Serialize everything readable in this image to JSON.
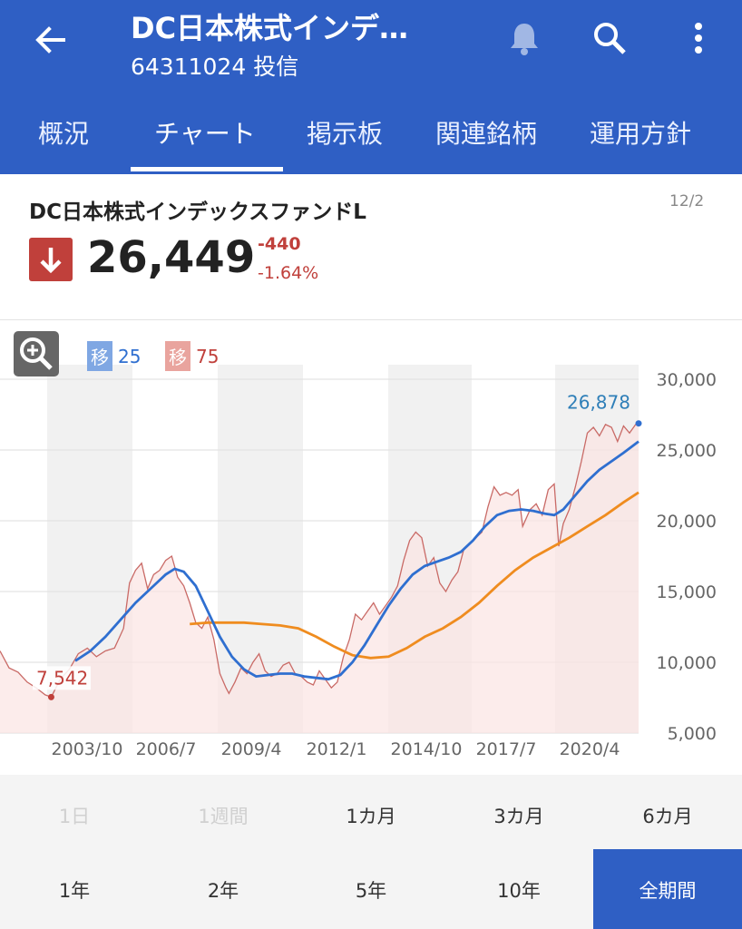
{
  "header": {
    "title": "DC日本株式インデ…",
    "subtitle": "64311024 投信"
  },
  "tabs": [
    {
      "label": "概況"
    },
    {
      "label": "チャート",
      "selected": true
    },
    {
      "label": "掲示板"
    },
    {
      "label": "関連銘柄"
    },
    {
      "label": "運用方針"
    }
  ],
  "quote": {
    "fund_name": "DC日本株式インデックスファンドL",
    "date": "12/2",
    "price": "26,449",
    "change": "-440",
    "change_pct": "-1.64%",
    "direction_icon": "arrow-down-icon"
  },
  "legend": {
    "ma_short_chip": "移",
    "ma_short_period": "25",
    "ma_long_chip": "移",
    "ma_long_period": "75"
  },
  "colors": {
    "brand": "#2f5fc4",
    "down": "#c0403b",
    "ma_short": "#2f6fd0",
    "ma_long": "#ef8c1f",
    "price_line": "#c96a66"
  },
  "chart_data": {
    "type": "line",
    "y_ticks": [
      "30,000",
      "25,000",
      "20,000",
      "15,000",
      "10,000",
      "5,000"
    ],
    "x_ticks": [
      "2003/10",
      "2006/7",
      "2009/4",
      "2012/1",
      "2014/10",
      "2017/7",
      "2020/4"
    ],
    "ylim": [
      5000,
      30000
    ],
    "high_label": "26,878",
    "low_label": "7,542",
    "series": [
      {
        "name": "移25",
        "role": "ma_short"
      },
      {
        "name": "移75",
        "role": "ma_long"
      }
    ],
    "price": [
      [
        2001.6,
        10800
      ],
      [
        2001.9,
        9600
      ],
      [
        2002.2,
        9300
      ],
      [
        2002.5,
        8600
      ],
      [
        2002.8,
        8200
      ],
      [
        2003.1,
        7700
      ],
      [
        2003.3,
        7542
      ],
      [
        2003.6,
        8800
      ],
      [
        2003.9,
        9500
      ],
      [
        2004.2,
        10600
      ],
      [
        2004.5,
        11000
      ],
      [
        2004.8,
        10400
      ],
      [
        2005.1,
        10800
      ],
      [
        2005.4,
        11000
      ],
      [
        2005.7,
        12400
      ],
      [
        2005.9,
        15600
      ],
      [
        2006.1,
        16500
      ],
      [
        2006.3,
        17000
      ],
      [
        2006.5,
        15200
      ],
      [
        2006.7,
        16200
      ],
      [
        2006.9,
        16500
      ],
      [
        2007.1,
        17200
      ],
      [
        2007.3,
        17500
      ],
      [
        2007.5,
        16000
      ],
      [
        2007.7,
        15400
      ],
      [
        2007.9,
        14200
      ],
      [
        2008.1,
        12800
      ],
      [
        2008.3,
        12400
      ],
      [
        2008.5,
        13200
      ],
      [
        2008.7,
        11600
      ],
      [
        2008.9,
        9200
      ],
      [
        2009.1,
        8200
      ],
      [
        2009.2,
        7800
      ],
      [
        2009.4,
        8600
      ],
      [
        2009.6,
        9600
      ],
      [
        2009.8,
        9200
      ],
      [
        2010.0,
        10000
      ],
      [
        2010.2,
        10600
      ],
      [
        2010.4,
        9400
      ],
      [
        2010.6,
        9000
      ],
      [
        2010.8,
        9200
      ],
      [
        2011.0,
        9800
      ],
      [
        2011.2,
        10000
      ],
      [
        2011.4,
        9200
      ],
      [
        2011.6,
        9000
      ],
      [
        2011.8,
        8600
      ],
      [
        2012.0,
        8400
      ],
      [
        2012.2,
        9400
      ],
      [
        2012.4,
        8800
      ],
      [
        2012.6,
        8200
      ],
      [
        2012.8,
        8600
      ],
      [
        2013.0,
        10400
      ],
      [
        2013.2,
        11600
      ],
      [
        2013.4,
        13400
      ],
      [
        2013.6,
        13000
      ],
      [
        2013.8,
        13600
      ],
      [
        2014.0,
        14200
      ],
      [
        2014.2,
        13400
      ],
      [
        2014.4,
        14000
      ],
      [
        2014.6,
        14600
      ],
      [
        2014.8,
        15400
      ],
      [
        2015.0,
        17200
      ],
      [
        2015.2,
        18600
      ],
      [
        2015.4,
        19200
      ],
      [
        2015.6,
        18800
      ],
      [
        2015.8,
        16800
      ],
      [
        2016.0,
        17400
      ],
      [
        2016.2,
        15600
      ],
      [
        2016.4,
        15000
      ],
      [
        2016.6,
        15800
      ],
      [
        2016.8,
        16400
      ],
      [
        2017.0,
        18000
      ],
      [
        2017.2,
        18400
      ],
      [
        2017.4,
        18800
      ],
      [
        2017.6,
        19200
      ],
      [
        2017.8,
        21000
      ],
      [
        2018.0,
        22400
      ],
      [
        2018.2,
        21800
      ],
      [
        2018.4,
        22000
      ],
      [
        2018.6,
        21800
      ],
      [
        2018.8,
        22200
      ],
      [
        2018.95,
        19600
      ],
      [
        2019.2,
        20800
      ],
      [
        2019.4,
        21200
      ],
      [
        2019.6,
        20400
      ],
      [
        2019.8,
        22200
      ],
      [
        2020.0,
        22600
      ],
      [
        2020.15,
        18200
      ],
      [
        2020.3,
        19800
      ],
      [
        2020.5,
        20800
      ],
      [
        2020.7,
        22400
      ],
      [
        2020.9,
        24200
      ],
      [
        2021.1,
        26200
      ],
      [
        2021.3,
        26600
      ],
      [
        2021.5,
        26000
      ],
      [
        2021.7,
        26800
      ],
      [
        2021.9,
        26600
      ],
      [
        2022.1,
        25600
      ],
      [
        2022.3,
        26700
      ],
      [
        2022.5,
        26200
      ],
      [
        2022.7,
        26800
      ],
      [
        2022.8,
        26878
      ]
    ],
    "ma_short": [
      [
        2004.1,
        10100
      ],
      [
        2004.6,
        10800
      ],
      [
        2005.1,
        11800
      ],
      [
        2005.6,
        13000
      ],
      [
        2006.1,
        14200
      ],
      [
        2006.6,
        15200
      ],
      [
        2007.1,
        16200
      ],
      [
        2007.4,
        16600
      ],
      [
        2007.7,
        16400
      ],
      [
        2008.1,
        15400
      ],
      [
        2008.5,
        13600
      ],
      [
        2008.9,
        11800
      ],
      [
        2009.3,
        10400
      ],
      [
        2009.7,
        9500
      ],
      [
        2010.1,
        9000
      ],
      [
        2010.5,
        9100
      ],
      [
        2010.9,
        9200
      ],
      [
        2011.3,
        9200
      ],
      [
        2011.7,
        9000
      ],
      [
        2012.1,
        8900
      ],
      [
        2012.5,
        8800
      ],
      [
        2012.9,
        9100
      ],
      [
        2013.3,
        10000
      ],
      [
        2013.7,
        11200
      ],
      [
        2014.1,
        12600
      ],
      [
        2014.5,
        14000
      ],
      [
        2014.9,
        15200
      ],
      [
        2015.3,
        16200
      ],
      [
        2015.7,
        16800
      ],
      [
        2016.1,
        17100
      ],
      [
        2016.5,
        17400
      ],
      [
        2016.9,
        17800
      ],
      [
        2017.3,
        18600
      ],
      [
        2017.7,
        19600
      ],
      [
        2018.1,
        20400
      ],
      [
        2018.5,
        20700
      ],
      [
        2018.9,
        20800
      ],
      [
        2019.3,
        20700
      ],
      [
        2019.7,
        20500
      ],
      [
        2020.0,
        20400
      ],
      [
        2020.3,
        20800
      ],
      [
        2020.7,
        21800
      ],
      [
        2021.1,
        22800
      ],
      [
        2021.5,
        23600
      ],
      [
        2021.9,
        24200
      ],
      [
        2022.3,
        24800
      ],
      [
        2022.8,
        25600
      ]
    ],
    "ma_long": [
      [
        2007.9,
        12700
      ],
      [
        2008.5,
        12800
      ],
      [
        2009.1,
        12800
      ],
      [
        2009.7,
        12800
      ],
      [
        2010.3,
        12700
      ],
      [
        2010.9,
        12600
      ],
      [
        2011.5,
        12400
      ],
      [
        2012.1,
        11800
      ],
      [
        2012.7,
        11100
      ],
      [
        2013.3,
        10500
      ],
      [
        2013.9,
        10300
      ],
      [
        2014.5,
        10400
      ],
      [
        2015.1,
        11000
      ],
      [
        2015.7,
        11800
      ],
      [
        2016.3,
        12400
      ],
      [
        2016.9,
        13200
      ],
      [
        2017.5,
        14200
      ],
      [
        2018.1,
        15400
      ],
      [
        2018.7,
        16500
      ],
      [
        2019.3,
        17400
      ],
      [
        2019.9,
        18100
      ],
      [
        2020.5,
        18800
      ],
      [
        2021.1,
        19600
      ],
      [
        2021.7,
        20400
      ],
      [
        2022.3,
        21300
      ],
      [
        2022.8,
        22000
      ]
    ]
  },
  "periods": {
    "row1": [
      {
        "label": "1日",
        "disabled": true
      },
      {
        "label": "1週間",
        "disabled": true
      },
      {
        "label": "1カ月"
      },
      {
        "label": "3カ月"
      },
      {
        "label": "6カ月"
      }
    ],
    "row2": [
      {
        "label": "1年"
      },
      {
        "label": "2年"
      },
      {
        "label": "5年"
      },
      {
        "label": "10年"
      },
      {
        "label": "全期間",
        "selected": true
      }
    ]
  }
}
